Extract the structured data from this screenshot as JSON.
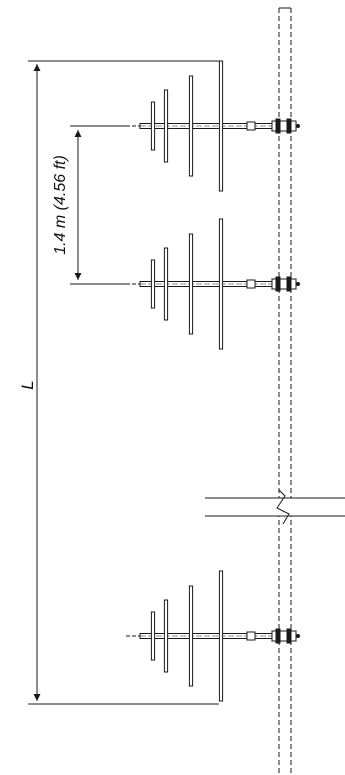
{
  "labels": {
    "spacing": "1.4 m (4.56 ft)",
    "total_length": "L"
  },
  "figure": {
    "antenna_count": 3,
    "elements_per_antenna": 4,
    "mast": "dashed-mast",
    "break_symbol": "z-break"
  },
  "colors": {
    "line": "#1a1a1a",
    "background": "#ffffff"
  }
}
